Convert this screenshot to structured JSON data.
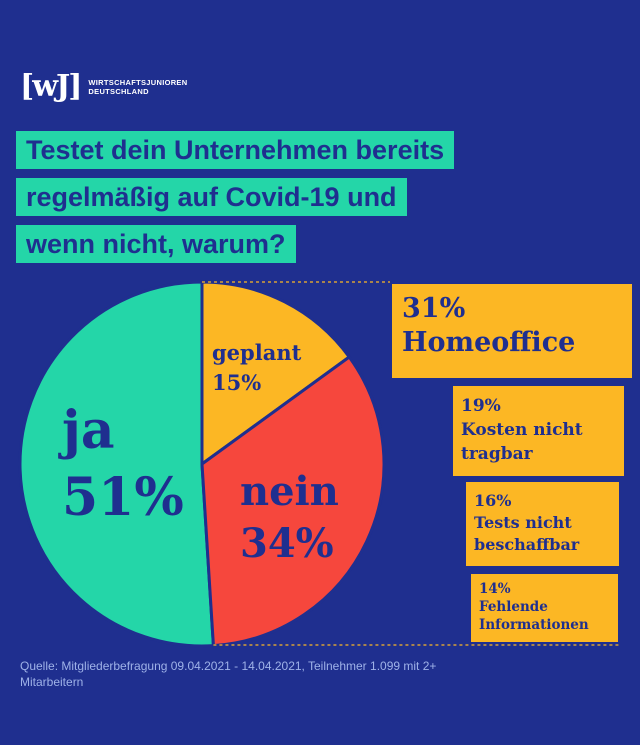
{
  "logo": {
    "mark": "[wJ]",
    "line1": "WIRTSCHAFTSJUNIOREN",
    "line2": "DEUTSCHLAND"
  },
  "title": {
    "lines": [
      "Testet dein Unternehmen bereits",
      "regelmäßig auf Covid-19 und",
      "wenn nicht, warum?"
    ]
  },
  "colors": {
    "background": "#1f2f8f",
    "ja": "#24d6a8",
    "geplant": "#fcb724",
    "nein": "#f6473d",
    "text_dark": "#1f2f8f"
  },
  "chart_data": {
    "type": "pie",
    "title": "Testet dein Unternehmen bereits regelmäßig auf Covid-19 und wenn nicht, warum?",
    "slices": [
      {
        "label": "ja",
        "value": 51,
        "value_label": "51%",
        "color": "#24d6a8"
      },
      {
        "label": "geplant",
        "value": 15,
        "value_label": "15%",
        "color": "#fcb724"
      },
      {
        "label": "nein",
        "value": 34,
        "value_label": "34%",
        "color": "#f6473d"
      }
    ],
    "breakdown_of": "nein",
    "reasons": [
      {
        "pct": "31%",
        "label": "Homeoffice",
        "value": 31
      },
      {
        "pct": "19%",
        "label": "Kosten nicht tragbar",
        "value": 19
      },
      {
        "pct": "16%",
        "label": "Tests nicht beschaffbar",
        "value": 16
      },
      {
        "pct": "14%",
        "label": "Fehlende Informationen",
        "value": 14
      }
    ]
  },
  "source": "Quelle: Mitgliederbefragung 09.04.2021 - 14.04.2021, Teilnehmer 1.099 mit 2+ Mitarbeitern"
}
